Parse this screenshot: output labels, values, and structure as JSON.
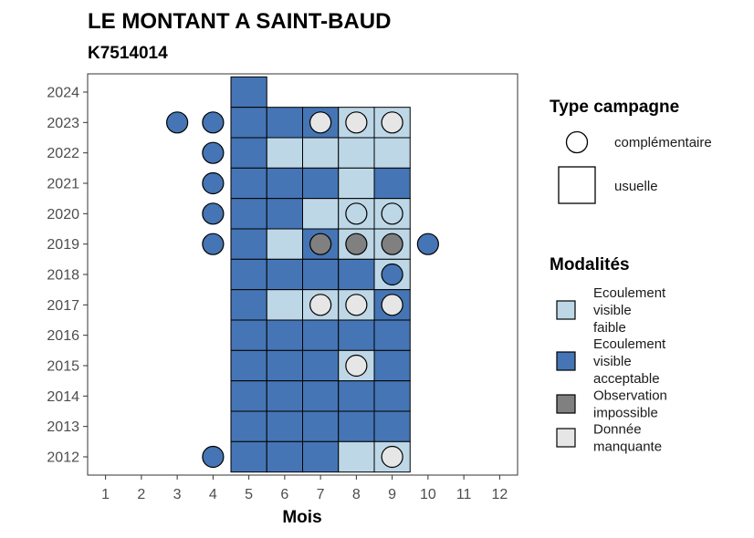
{
  "chart_data": {
    "type": "heatmap",
    "title": "LE MONTANT A SAINT-BAUD",
    "subtitle": "K7514014",
    "xlabel": "Mois",
    "ylabel": "",
    "x_ticks": [
      "1",
      "2",
      "3",
      "4",
      "5",
      "6",
      "7",
      "8",
      "9",
      "10",
      "11",
      "12"
    ],
    "y_ticks": [
      "2012",
      "2013",
      "2014",
      "2015",
      "2016",
      "2017",
      "2018",
      "2019",
      "2020",
      "2021",
      "2022",
      "2023",
      "2024"
    ],
    "xlim": [
      0.5,
      12.5
    ],
    "ylim": [
      2011.4,
      2024.6
    ],
    "grid": false,
    "modalities": {
      "faible": {
        "label": "Ecoulement visible faible",
        "color": "#bdd7e7"
      },
      "acceptable": {
        "label": "Ecoulement visible acceptable",
        "color": "#4575b4"
      },
      "impossible": {
        "label": "Observation impossible",
        "color": "#808080"
      },
      "manquante": {
        "label": "Donnée manquante",
        "color": "#e6e6e6"
      }
    },
    "usuelle": [
      {
        "year": 2024,
        "month": 5,
        "modality": "acceptable"
      },
      {
        "year": 2023,
        "month": 5,
        "modality": "acceptable"
      },
      {
        "year": 2023,
        "month": 6,
        "modality": "acceptable"
      },
      {
        "year": 2023,
        "month": 7,
        "modality": "acceptable"
      },
      {
        "year": 2023,
        "month": 8,
        "modality": "faible"
      },
      {
        "year": 2023,
        "month": 9,
        "modality": "faible"
      },
      {
        "year": 2022,
        "month": 5,
        "modality": "acceptable"
      },
      {
        "year": 2022,
        "month": 6,
        "modality": "faible"
      },
      {
        "year": 2022,
        "month": 7,
        "modality": "faible"
      },
      {
        "year": 2022,
        "month": 8,
        "modality": "faible"
      },
      {
        "year": 2022,
        "month": 9,
        "modality": "faible"
      },
      {
        "year": 2021,
        "month": 5,
        "modality": "acceptable"
      },
      {
        "year": 2021,
        "month": 6,
        "modality": "acceptable"
      },
      {
        "year": 2021,
        "month": 7,
        "modality": "acceptable"
      },
      {
        "year": 2021,
        "month": 8,
        "modality": "faible"
      },
      {
        "year": 2021,
        "month": 9,
        "modality": "acceptable"
      },
      {
        "year": 2020,
        "month": 5,
        "modality": "acceptable"
      },
      {
        "year": 2020,
        "month": 6,
        "modality": "acceptable"
      },
      {
        "year": 2020,
        "month": 7,
        "modality": "faible"
      },
      {
        "year": 2020,
        "month": 8,
        "modality": "faible"
      },
      {
        "year": 2020,
        "month": 9,
        "modality": "faible"
      },
      {
        "year": 2019,
        "month": 5,
        "modality": "acceptable"
      },
      {
        "year": 2019,
        "month": 6,
        "modality": "faible"
      },
      {
        "year": 2019,
        "month": 7,
        "modality": "acceptable"
      },
      {
        "year": 2019,
        "month": 8,
        "modality": "faible"
      },
      {
        "year": 2019,
        "month": 9,
        "modality": "faible"
      },
      {
        "year": 2018,
        "month": 5,
        "modality": "acceptable"
      },
      {
        "year": 2018,
        "month": 6,
        "modality": "acceptable"
      },
      {
        "year": 2018,
        "month": 7,
        "modality": "acceptable"
      },
      {
        "year": 2018,
        "month": 8,
        "modality": "acceptable"
      },
      {
        "year": 2018,
        "month": 9,
        "modality": "faible"
      },
      {
        "year": 2017,
        "month": 5,
        "modality": "acceptable"
      },
      {
        "year": 2017,
        "month": 6,
        "modality": "faible"
      },
      {
        "year": 2017,
        "month": 7,
        "modality": "faible"
      },
      {
        "year": 2017,
        "month": 8,
        "modality": "faible"
      },
      {
        "year": 2017,
        "month": 9,
        "modality": "acceptable"
      },
      {
        "year": 2016,
        "month": 5,
        "modality": "acceptable"
      },
      {
        "year": 2016,
        "month": 6,
        "modality": "acceptable"
      },
      {
        "year": 2016,
        "month": 7,
        "modality": "acceptable"
      },
      {
        "year": 2016,
        "month": 8,
        "modality": "acceptable"
      },
      {
        "year": 2016,
        "month": 9,
        "modality": "acceptable"
      },
      {
        "year": 2015,
        "month": 5,
        "modality": "acceptable"
      },
      {
        "year": 2015,
        "month": 6,
        "modality": "acceptable"
      },
      {
        "year": 2015,
        "month": 7,
        "modality": "acceptable"
      },
      {
        "year": 2015,
        "month": 8,
        "modality": "faible"
      },
      {
        "year": 2015,
        "month": 9,
        "modality": "acceptable"
      },
      {
        "year": 2014,
        "month": 5,
        "modality": "acceptable"
      },
      {
        "year": 2014,
        "month": 6,
        "modality": "acceptable"
      },
      {
        "year": 2014,
        "month": 7,
        "modality": "acceptable"
      },
      {
        "year": 2014,
        "month": 8,
        "modality": "acceptable"
      },
      {
        "year": 2014,
        "month": 9,
        "modality": "acceptable"
      },
      {
        "year": 2013,
        "month": 5,
        "modality": "acceptable"
      },
      {
        "year": 2013,
        "month": 6,
        "modality": "acceptable"
      },
      {
        "year": 2013,
        "month": 7,
        "modality": "acceptable"
      },
      {
        "year": 2013,
        "month": 8,
        "modality": "acceptable"
      },
      {
        "year": 2013,
        "month": 9,
        "modality": "acceptable"
      },
      {
        "year": 2012,
        "month": 5,
        "modality": "acceptable"
      },
      {
        "year": 2012,
        "month": 6,
        "modality": "acceptable"
      },
      {
        "year": 2012,
        "month": 7,
        "modality": "acceptable"
      },
      {
        "year": 2012,
        "month": 8,
        "modality": "faible"
      },
      {
        "year": 2012,
        "month": 9,
        "modality": "faible"
      }
    ],
    "complementaire": [
      {
        "year": 2023,
        "month": 3,
        "modality": "acceptable"
      },
      {
        "year": 2023,
        "month": 4,
        "modality": "acceptable"
      },
      {
        "year": 2023,
        "month": 7,
        "modality": "manquante"
      },
      {
        "year": 2023,
        "month": 8,
        "modality": "manquante"
      },
      {
        "year": 2023,
        "month": 9,
        "modality": "manquante"
      },
      {
        "year": 2022,
        "month": 4,
        "modality": "acceptable"
      },
      {
        "year": 2021,
        "month": 4,
        "modality": "acceptable"
      },
      {
        "year": 2020,
        "month": 4,
        "modality": "acceptable"
      },
      {
        "year": 2020,
        "month": 8,
        "modality": "faible"
      },
      {
        "year": 2020,
        "month": 9,
        "modality": "faible"
      },
      {
        "year": 2019,
        "month": 4,
        "modality": "acceptable"
      },
      {
        "year": 2019,
        "month": 7,
        "modality": "impossible"
      },
      {
        "year": 2019,
        "month": 8,
        "modality": "impossible"
      },
      {
        "year": 2019,
        "month": 9,
        "modality": "impossible"
      },
      {
        "year": 2019,
        "month": 10,
        "modality": "acceptable"
      },
      {
        "year": 2018,
        "month": 9,
        "modality": "acceptable"
      },
      {
        "year": 2017,
        "month": 7,
        "modality": "manquante"
      },
      {
        "year": 2017,
        "month": 8,
        "modality": "manquante"
      },
      {
        "year": 2017,
        "month": 9,
        "modality": "manquante"
      },
      {
        "year": 2015,
        "month": 8,
        "modality": "manquante"
      },
      {
        "year": 2012,
        "month": 4,
        "modality": "acceptable"
      },
      {
        "year": 2012,
        "month": 9,
        "modality": "manquante"
      }
    ],
    "legend": {
      "placement": "right",
      "type_title": "Type campagne",
      "type_items": [
        {
          "label": "complémentaire",
          "shape": "circle"
        },
        {
          "label": "usuelle",
          "shape": "square"
        }
      ],
      "modalites_title": "Modalités",
      "modalites_items": [
        {
          "key": "faible",
          "lines": [
            "Ecoulement",
            "visible",
            "faible"
          ]
        },
        {
          "key": "acceptable",
          "lines": [
            "Ecoulement",
            "visible",
            "acceptable"
          ]
        },
        {
          "key": "impossible",
          "lines": [
            "Observation",
            "impossible"
          ]
        },
        {
          "key": "manquante",
          "lines": [
            "Donnée",
            "manquante"
          ]
        }
      ]
    }
  }
}
